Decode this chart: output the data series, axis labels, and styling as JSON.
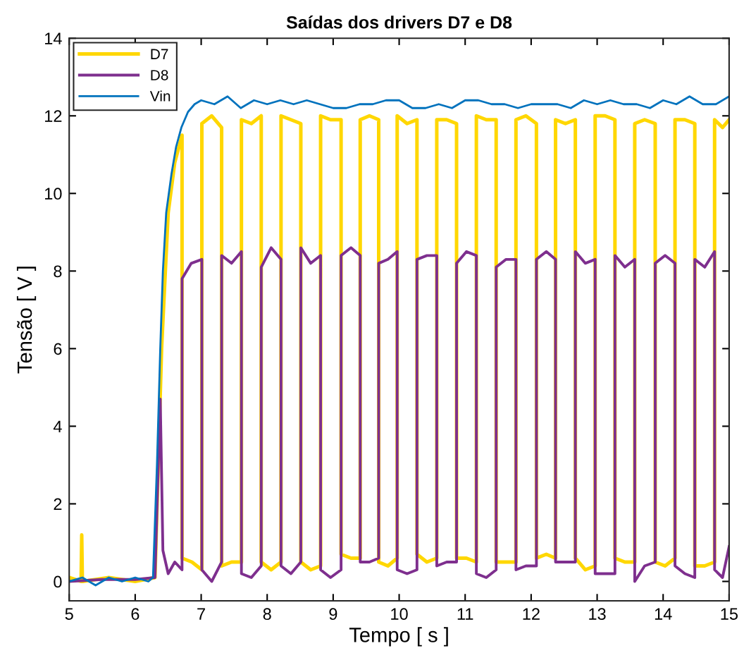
{
  "chart_data": {
    "type": "line",
    "title": "Saídas dos drivers D7 e D8",
    "xlabel": "Tempo [ s ]",
    "ylabel": "Tensão [ V ]",
    "xlim": [
      5,
      15
    ],
    "xticks": [
      5,
      6,
      7,
      8,
      9,
      10,
      11,
      12,
      13,
      14,
      15
    ],
    "ylim": [
      -0.5,
      14
    ],
    "yticks": [
      0,
      2,
      4,
      6,
      8,
      10,
      12,
      14
    ],
    "grid": false,
    "legend": "top left",
    "line_style": "solid",
    "series": [
      {
        "name": "D7",
        "color": "#ffd700",
        "x": [
          5.0,
          5.18,
          5.19,
          5.2,
          5.6,
          6.0,
          6.3,
          6.4,
          6.5,
          6.6,
          6.71,
          6.71,
          6.86,
          7.01,
          7.01,
          7.16,
          7.31,
          7.31,
          7.46,
          7.61,
          7.61,
          7.76,
          7.91,
          7.91,
          8.06,
          8.21,
          8.21,
          8.36,
          8.51,
          8.51,
          8.66,
          8.81,
          8.81,
          8.96,
          9.12,
          9.12,
          9.27,
          9.41,
          9.41,
          9.55,
          9.69,
          9.69,
          9.83,
          9.97,
          9.97,
          10.12,
          10.27,
          10.27,
          10.42,
          10.57,
          10.57,
          10.72,
          10.87,
          10.87,
          11.02,
          11.17,
          11.17,
          11.32,
          11.47,
          11.47,
          11.62,
          11.77,
          11.77,
          11.92,
          12.08,
          12.08,
          12.23,
          12.37,
          12.37,
          12.52,
          12.67,
          12.67,
          12.82,
          12.97,
          12.97,
          13.12,
          13.27,
          13.27,
          13.42,
          13.57,
          13.57,
          13.72,
          13.88,
          13.88,
          14.03,
          14.18,
          14.18,
          14.33,
          14.48,
          14.48,
          14.63,
          14.78,
          14.78,
          14.9,
          15.0
        ],
        "values": [
          0.1,
          0.0,
          1.2,
          0.0,
          0.1,
          0.0,
          0.1,
          6.0,
          9.5,
          10.8,
          11.5,
          0.6,
          0.5,
          0.3,
          11.8,
          12.0,
          11.7,
          0.4,
          0.5,
          0.5,
          11.9,
          11.8,
          12.0,
          0.5,
          0.3,
          0.5,
          12.0,
          11.9,
          11.8,
          0.5,
          0.3,
          0.4,
          12.0,
          11.9,
          11.9,
          0.7,
          0.6,
          0.6,
          11.9,
          12.0,
          11.9,
          0.5,
          0.4,
          0.6,
          12.0,
          11.8,
          11.9,
          0.7,
          0.5,
          0.6,
          11.9,
          11.9,
          11.8,
          0.6,
          0.6,
          0.5,
          12.0,
          11.9,
          11.9,
          0.5,
          0.5,
          0.5,
          11.9,
          12.0,
          11.8,
          0.6,
          0.7,
          0.6,
          11.9,
          11.8,
          11.9,
          0.6,
          0.3,
          0.4,
          12.0,
          12.0,
          11.9,
          0.6,
          0.5,
          0.5,
          11.8,
          11.9,
          11.8,
          0.5,
          0.4,
          0.6,
          11.9,
          11.9,
          11.8,
          0.4,
          0.4,
          0.5,
          11.9,
          11.7,
          11.9
        ]
      },
      {
        "name": "D8",
        "color": "#7e2f8e",
        "x": [
          5.0,
          5.5,
          6.0,
          6.3,
          6.38,
          6.42,
          6.5,
          6.6,
          6.71,
          6.71,
          6.85,
          7.01,
          7.01,
          7.16,
          7.31,
          7.31,
          7.46,
          7.61,
          7.61,
          7.76,
          7.91,
          7.91,
          8.06,
          8.21,
          8.21,
          8.36,
          8.51,
          8.51,
          8.66,
          8.81,
          8.81,
          8.96,
          9.12,
          9.12,
          9.27,
          9.41,
          9.41,
          9.55,
          9.69,
          9.69,
          9.83,
          9.97,
          9.97,
          10.12,
          10.27,
          10.27,
          10.42,
          10.57,
          10.57,
          10.72,
          10.87,
          10.87,
          11.02,
          11.17,
          11.17,
          11.32,
          11.47,
          11.47,
          11.62,
          11.77,
          11.77,
          11.92,
          12.08,
          12.08,
          12.23,
          12.37,
          12.37,
          12.52,
          12.67,
          12.67,
          12.82,
          12.97,
          12.97,
          13.12,
          13.27,
          13.27,
          13.42,
          13.57,
          13.57,
          13.72,
          13.88,
          13.88,
          14.03,
          14.18,
          14.18,
          14.33,
          14.48,
          14.48,
          14.63,
          14.78,
          14.78,
          14.9,
          15.0
        ],
        "values": [
          0.0,
          0.05,
          0.05,
          0.1,
          4.7,
          0.8,
          0.2,
          0.5,
          0.3,
          7.8,
          8.2,
          8.3,
          0.3,
          0.0,
          0.5,
          8.4,
          8.2,
          8.5,
          0.2,
          0.1,
          0.4,
          8.1,
          8.6,
          8.3,
          0.4,
          0.2,
          0.5,
          8.6,
          8.2,
          8.4,
          0.3,
          0.1,
          0.3,
          8.4,
          8.6,
          8.4,
          0.5,
          0.5,
          0.6,
          8.2,
          8.3,
          8.5,
          0.3,
          0.2,
          0.3,
          8.3,
          8.4,
          8.4,
          0.4,
          0.5,
          0.5,
          8.2,
          8.5,
          8.4,
          0.2,
          0.1,
          0.3,
          8.1,
          8.3,
          8.3,
          0.3,
          0.4,
          0.4,
          8.3,
          8.5,
          8.3,
          0.5,
          0.5,
          0.5,
          8.5,
          8.2,
          8.3,
          0.2,
          0.2,
          0.2,
          8.4,
          8.1,
          8.3,
          0.0,
          0.4,
          0.5,
          8.2,
          8.4,
          8.2,
          0.4,
          0.2,
          0.1,
          8.3,
          8.1,
          8.5,
          0.3,
          0.1,
          0.9
        ]
      },
      {
        "name": "Vin",
        "color": "#0072bd",
        "x": [
          5.0,
          5.2,
          5.4,
          5.6,
          5.8,
          6.0,
          6.2,
          6.27,
          6.33,
          6.38,
          6.42,
          6.47,
          6.55,
          6.62,
          6.7,
          6.8,
          6.9,
          7.0,
          7.2,
          7.4,
          7.6,
          7.8,
          8.0,
          8.2,
          8.4,
          8.6,
          8.8,
          9.0,
          9.2,
          9.4,
          9.6,
          9.8,
          10.0,
          10.2,
          10.4,
          10.6,
          10.8,
          11.0,
          11.2,
          11.4,
          11.6,
          11.8,
          12.0,
          12.2,
          12.4,
          12.6,
          12.8,
          13.0,
          13.2,
          13.4,
          13.6,
          13.8,
          14.0,
          14.2,
          14.4,
          14.6,
          14.8,
          15.0
        ],
        "values": [
          0.0,
          0.1,
          -0.1,
          0.1,
          0.0,
          0.1,
          0.0,
          0.1,
          3.0,
          6.0,
          8.0,
          9.5,
          10.5,
          11.2,
          11.7,
          12.1,
          12.3,
          12.4,
          12.3,
          12.5,
          12.2,
          12.4,
          12.3,
          12.4,
          12.3,
          12.4,
          12.3,
          12.2,
          12.2,
          12.3,
          12.3,
          12.4,
          12.4,
          12.2,
          12.2,
          12.3,
          12.2,
          12.4,
          12.4,
          12.3,
          12.3,
          12.2,
          12.3,
          12.3,
          12.3,
          12.2,
          12.4,
          12.3,
          12.4,
          12.3,
          12.3,
          12.2,
          12.4,
          12.3,
          12.5,
          12.3,
          12.3,
          12.5
        ]
      }
    ]
  }
}
